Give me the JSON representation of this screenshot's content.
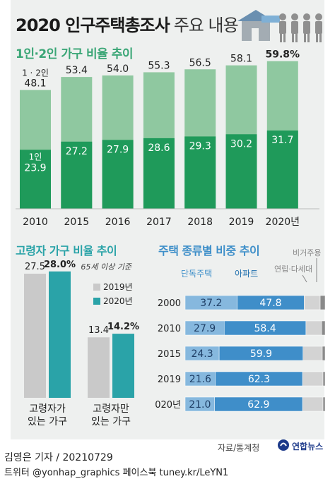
{
  "title": "2020 인구주택총조사",
  "subtitle": "주요 내용",
  "colors": {
    "green_light": "#8fc8a0",
    "green_dark": "#1f9a5a",
    "gray_bar": "#c9c9c9",
    "teal_bar": "#2aa3a8",
    "single_house": "#86b8de",
    "apartment": "#3f8ec9",
    "multi": "#d3d3d3",
    "nonres": "#8a8a8a"
  },
  "chart_data": [
    {
      "type": "bar",
      "title": "1인·2인 가구 비율 추이",
      "categories": [
        "2010",
        "2015",
        "2016",
        "2017",
        "2018",
        "2019",
        "2020년"
      ],
      "series": [
        {
          "name": "1·2인",
          "values": [
            48.1,
            53.4,
            54.0,
            55.3,
            56.5,
            58.1,
            59.8
          ]
        },
        {
          "name": "1인",
          "values": [
            23.9,
            27.2,
            27.9,
            28.6,
            29.3,
            30.2,
            31.7
          ]
        }
      ],
      "value_labels": {
        "total": [
          "48.1",
          "53.4",
          "54.0",
          "55.3",
          "56.5",
          "58.1",
          "59.8%"
        ],
        "single": [
          "23.9",
          "27.2",
          "27.9",
          "28.6",
          "29.3",
          "30.2",
          "31.7"
        ]
      },
      "first_bar_labels": {
        "total_prefix": "1 · 2인",
        "single_prefix": "1인"
      },
      "ylim": [
        0,
        70
      ]
    },
    {
      "type": "bar",
      "title": "고령자 가구 비율 추이",
      "note": "65세 이상 기준",
      "categories": [
        "고령자가 있는 가구",
        "고령자만 있는 가구"
      ],
      "category_lines": [
        [
          "고령자가",
          "있는 가구"
        ],
        [
          "고령자만",
          "있는 가구"
        ]
      ],
      "series": [
        {
          "name": "2019년",
          "values": [
            27.5,
            13.4
          ]
        },
        {
          "name": "2020년",
          "values": [
            28.0,
            14.2
          ]
        }
      ],
      "value_labels": [
        [
          "27.5",
          "28.0%"
        ],
        [
          "13.4",
          "14.2%"
        ]
      ],
      "ylim": [
        0,
        30
      ]
    },
    {
      "type": "bar",
      "orientation": "horizontal-stacked",
      "title": "주택 종류별 비중 추이",
      "categories": [
        "2000",
        "2010",
        "2015",
        "2019",
        "2020년"
      ],
      "series": [
        {
          "name": "단독주택",
          "values": [
            37.2,
            27.9,
            24.3,
            21.6,
            21.0
          ]
        },
        {
          "name": "아파트",
          "values": [
            47.8,
            58.4,
            59.9,
            62.3,
            62.9
          ]
        },
        {
          "name": "연립·다세대",
          "values": [
            11.5,
            11.3,
            13.8,
            14.6,
            14.6
          ]
        },
        {
          "name": "비거주용",
          "values": [
            3.5,
            2.4,
            2.0,
            1.5,
            1.5
          ]
        }
      ],
      "value_labels": {
        "단독주택": [
          "37.2",
          "27.9",
          "24.3",
          "21.6",
          "21.0"
        ],
        "아파트": [
          "47.8",
          "58.4",
          "59.9",
          "62.3",
          "62.9"
        ]
      }
    }
  ],
  "source": "자료/통계청",
  "logo_text": "연합뉴스",
  "byline": "김영은 기자 / 20210729",
  "social": "트위터 @yonhap_graphics  페이스북 tuney.kr/LeYN1"
}
